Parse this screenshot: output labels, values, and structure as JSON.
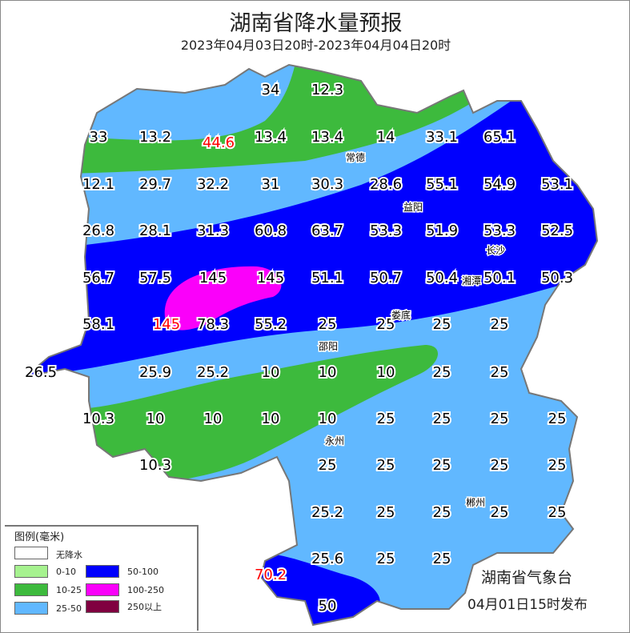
{
  "title": "湖南省降水量预报",
  "subtitle": "2023年04月03日20时-2023年04月04日20时",
  "legend": {
    "title": "图例(毫米)",
    "items": [
      {
        "label": "无降水",
        "color": "#ffffff"
      },
      {
        "label": "0-10",
        "color": "#a6f28f"
      },
      {
        "label": "10-25",
        "color": "#3dba3d"
      },
      {
        "label": "25-50",
        "color": "#61b8ff"
      },
      {
        "label": "50-100",
        "color": "#0000fe"
      },
      {
        "label": "100-250",
        "color": "#fa00fa"
      },
      {
        "label": "250以上",
        "color": "#800040"
      }
    ]
  },
  "agency": "湖南省气象台",
  "issued": "04月01日15时发布",
  "values": [
    "34",
    "12.3",
    "33",
    "13.2",
    "44.6",
    "13.4",
    "13.4",
    "14",
    "33.1",
    "65.1",
    "12.1",
    "29.7",
    "32.2",
    "31",
    "30.3",
    "28.6",
    "55.1",
    "54.9",
    "53.1",
    "26.8",
    "28.1",
    "31.3",
    "60.8",
    "63.7",
    "53.3",
    "51.9",
    "53.3",
    "52.5",
    "56.7",
    "57.5",
    "145",
    "145",
    "51.1",
    "50.7",
    "50.4",
    "50.1",
    "50.3",
    "58.1",
    "145",
    "78.3",
    "55.2",
    "25",
    "25",
    "25",
    "25",
    "26.5",
    "25.9",
    "25.2",
    "10",
    "10",
    "10",
    "25",
    "25",
    "10.3",
    "10",
    "10",
    "10",
    "10",
    "25",
    "25",
    "25",
    "25",
    "10.3",
    "25",
    "25",
    "25",
    "25",
    "25",
    "25.2",
    "25",
    "25",
    "25",
    "25",
    "25.6",
    "25",
    "25",
    "70.2",
    "50"
  ],
  "cities": [
    "常德",
    "益阳",
    "长沙",
    "湘潭",
    "娄底",
    "邵阳",
    "永州",
    "郴州"
  ]
}
